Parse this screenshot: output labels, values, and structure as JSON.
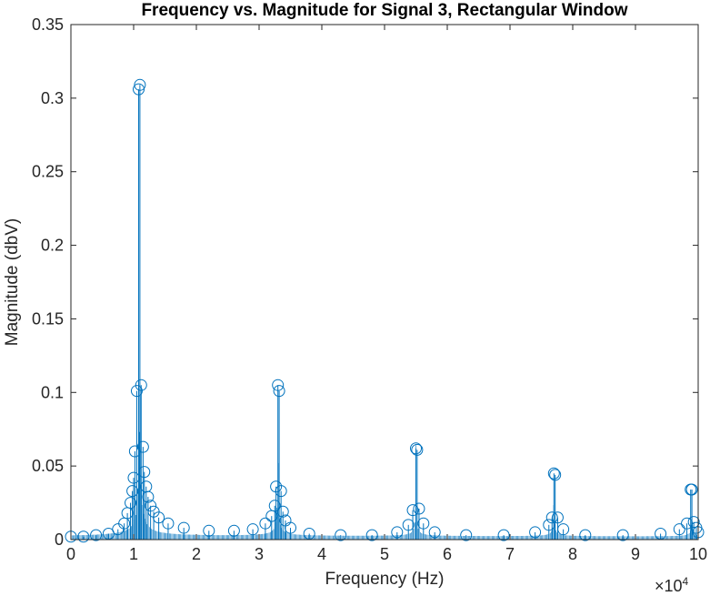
{
  "chart_data": {
    "type": "stem",
    "title": "Frequency vs. Magnitude for Signal 3, Rectangular Window",
    "xlabel": "Frequency (Hz)",
    "ylabel": "Magnitude (dbV)",
    "x_exponent_base": "×10",
    "x_exponent_power": "4",
    "xlim": [
      0,
      10
    ],
    "ylim": [
      0,
      0.35
    ],
    "x_unit_multiplier": 10000,
    "xticks": [
      "0",
      "1",
      "2",
      "3",
      "4",
      "5",
      "6",
      "7",
      "8",
      "9",
      "10"
    ],
    "yticks": [
      "0",
      "0.05",
      "0.1",
      "0.15",
      "0.2",
      "0.25",
      "0.3",
      "0.35"
    ],
    "series_color": "#0072bd",
    "peaks": [
      {
        "x": 1.1,
        "y": 0.309
      },
      {
        "x": 3.3,
        "y": 0.105
      },
      {
        "x": 5.5,
        "y": 0.062
      },
      {
        "x": 7.7,
        "y": 0.045
      },
      {
        "x": 9.9,
        "y": 0.034
      }
    ],
    "marked_points": [
      {
        "x": 0.0,
        "y": 0.002
      },
      {
        "x": 0.2,
        "y": 0.002
      },
      {
        "x": 0.4,
        "y": 0.003
      },
      {
        "x": 0.6,
        "y": 0.004
      },
      {
        "x": 0.75,
        "y": 0.007
      },
      {
        "x": 0.85,
        "y": 0.011
      },
      {
        "x": 0.9,
        "y": 0.018
      },
      {
        "x": 0.95,
        "y": 0.025
      },
      {
        "x": 0.98,
        "y": 0.033
      },
      {
        "x": 1.0,
        "y": 0.042
      },
      {
        "x": 1.02,
        "y": 0.06
      },
      {
        "x": 1.05,
        "y": 0.101
      },
      {
        "x": 1.08,
        "y": 0.306
      },
      {
        "x": 1.1,
        "y": 0.309
      },
      {
        "x": 1.12,
        "y": 0.105
      },
      {
        "x": 1.15,
        "y": 0.063
      },
      {
        "x": 1.17,
        "y": 0.046
      },
      {
        "x": 1.2,
        "y": 0.036
      },
      {
        "x": 1.23,
        "y": 0.029
      },
      {
        "x": 1.27,
        "y": 0.023
      },
      {
        "x": 1.32,
        "y": 0.019
      },
      {
        "x": 1.4,
        "y": 0.015
      },
      {
        "x": 1.55,
        "y": 0.011
      },
      {
        "x": 1.8,
        "y": 0.008
      },
      {
        "x": 2.2,
        "y": 0.006
      },
      {
        "x": 2.6,
        "y": 0.006
      },
      {
        "x": 2.9,
        "y": 0.007
      },
      {
        "x": 3.1,
        "y": 0.011
      },
      {
        "x": 3.2,
        "y": 0.016
      },
      {
        "x": 3.25,
        "y": 0.023
      },
      {
        "x": 3.27,
        "y": 0.036
      },
      {
        "x": 3.3,
        "y": 0.105
      },
      {
        "x": 3.32,
        "y": 0.101
      },
      {
        "x": 3.35,
        "y": 0.033
      },
      {
        "x": 3.38,
        "y": 0.019
      },
      {
        "x": 3.42,
        "y": 0.013
      },
      {
        "x": 3.5,
        "y": 0.008
      },
      {
        "x": 3.8,
        "y": 0.004
      },
      {
        "x": 4.3,
        "y": 0.003
      },
      {
        "x": 4.8,
        "y": 0.003
      },
      {
        "x": 5.2,
        "y": 0.005
      },
      {
        "x": 5.38,
        "y": 0.01
      },
      {
        "x": 5.45,
        "y": 0.02
      },
      {
        "x": 5.5,
        "y": 0.062
      },
      {
        "x": 5.52,
        "y": 0.061
      },
      {
        "x": 5.55,
        "y": 0.021
      },
      {
        "x": 5.62,
        "y": 0.011
      },
      {
        "x": 5.8,
        "y": 0.005
      },
      {
        "x": 6.3,
        "y": 0.003
      },
      {
        "x": 6.9,
        "y": 0.003
      },
      {
        "x": 7.4,
        "y": 0.005
      },
      {
        "x": 7.62,
        "y": 0.01
      },
      {
        "x": 7.67,
        "y": 0.015
      },
      {
        "x": 7.7,
        "y": 0.045
      },
      {
        "x": 7.72,
        "y": 0.044
      },
      {
        "x": 7.76,
        "y": 0.015
      },
      {
        "x": 7.85,
        "y": 0.007
      },
      {
        "x": 8.2,
        "y": 0.003
      },
      {
        "x": 8.8,
        "y": 0.003
      },
      {
        "x": 9.4,
        "y": 0.004
      },
      {
        "x": 9.7,
        "y": 0.007
      },
      {
        "x": 9.82,
        "y": 0.011
      },
      {
        "x": 9.88,
        "y": 0.034
      },
      {
        "x": 9.9,
        "y": 0.034
      },
      {
        "x": 9.93,
        "y": 0.012
      },
      {
        "x": 9.97,
        "y": 0.008
      },
      {
        "x": 10.0,
        "y": 0.005
      }
    ],
    "grid": false,
    "legend": "none"
  }
}
